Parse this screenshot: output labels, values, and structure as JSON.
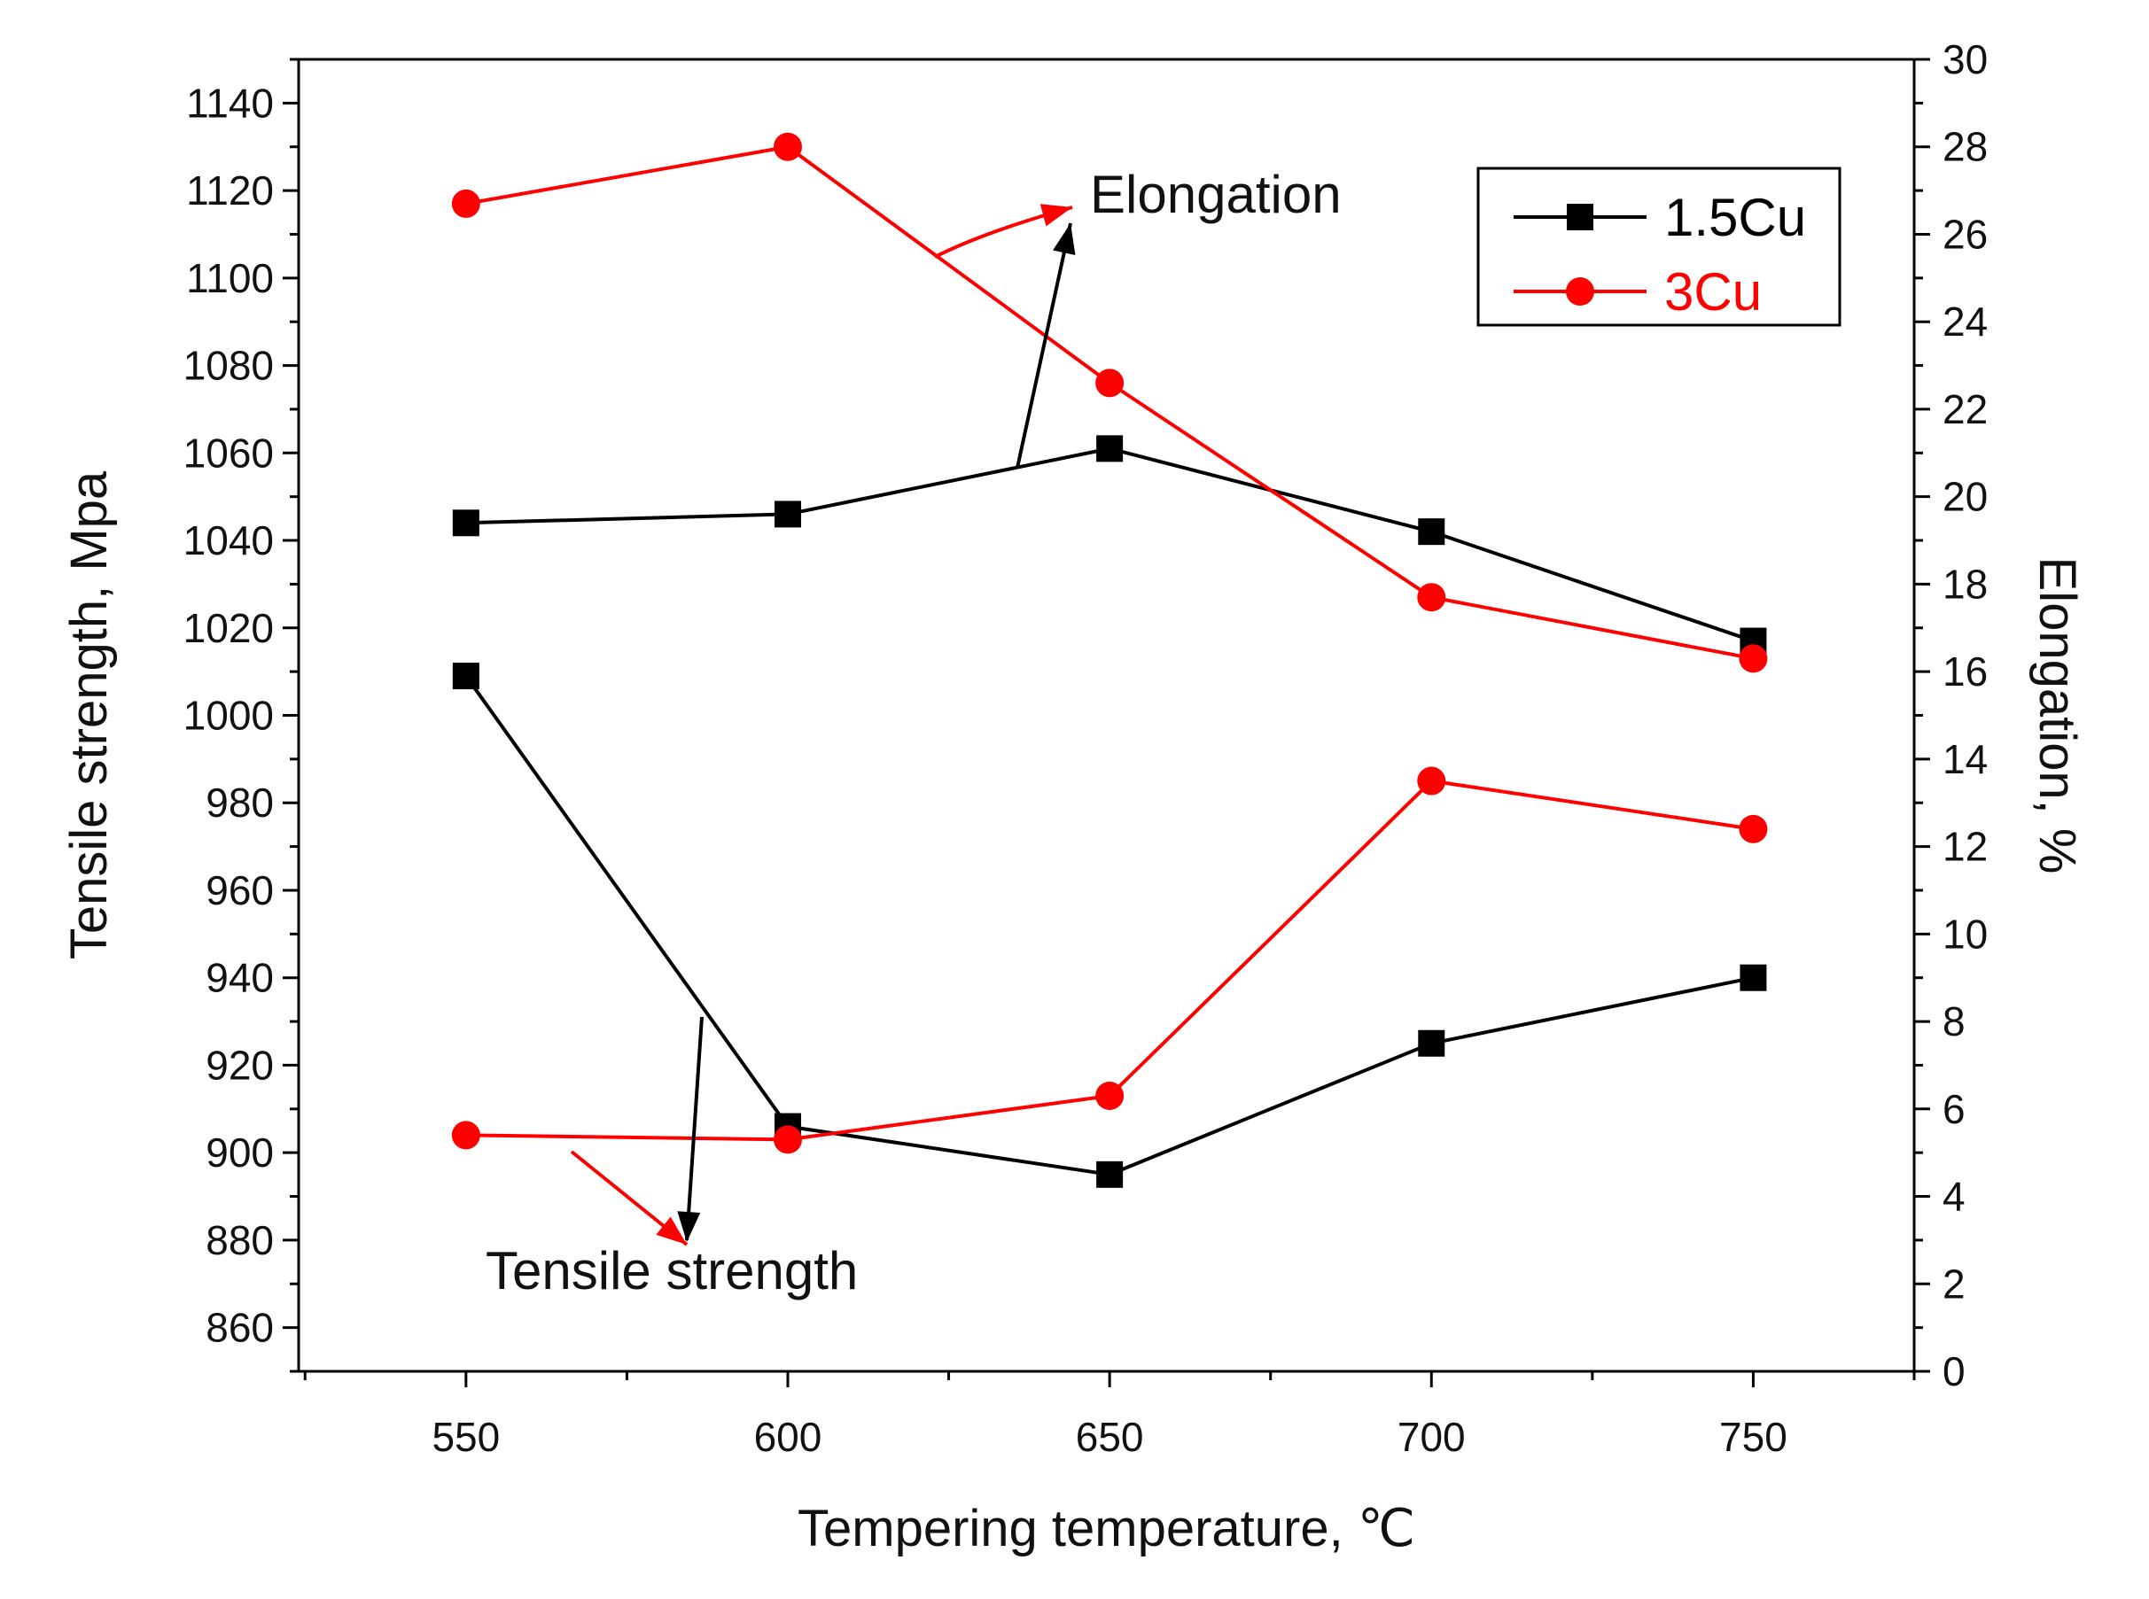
{
  "chart_data": {
    "type": "line",
    "title": "",
    "xlabel": "Tempering temperature, ℃",
    "ylabel": "Tensile strength, Mpa",
    "y2label": "Elongation, %",
    "x": [
      550,
      600,
      650,
      700,
      750
    ],
    "x_ticks": [
      "550",
      "600",
      "650",
      "700",
      "750"
    ],
    "xlim": [
      524,
      775
    ],
    "ylim": [
      850,
      1150
    ],
    "y_ticks": [
      "860",
      "880",
      "900",
      "920",
      "940",
      "960",
      "980",
      "1000",
      "1020",
      "1040",
      "1060",
      "1080",
      "1100",
      "1120",
      "1140"
    ],
    "y2lim": [
      0,
      30
    ],
    "y2_ticks": [
      "0",
      "2",
      "4",
      "6",
      "8",
      "10",
      "12",
      "14",
      "16",
      "18",
      "20",
      "22",
      "24",
      "26",
      "28",
      "30"
    ],
    "legend_position": "top-right",
    "legend": [
      {
        "name": "1.5Cu",
        "color": "#000000",
        "marker": "square"
      },
      {
        "name": "3Cu",
        "color": "#ff0000",
        "marker": "circle"
      }
    ],
    "series": [
      {
        "name": "1.5Cu",
        "quantity": "Tensile strength",
        "axis": "left",
        "color": "#000000",
        "marker": "square",
        "values": [
          1009,
          906,
          895,
          925,
          940
        ]
      },
      {
        "name": "3Cu",
        "quantity": "Tensile strength",
        "axis": "left",
        "color": "#ff0000",
        "marker": "circle",
        "values": [
          904,
          903,
          913,
          985,
          974
        ]
      },
      {
        "name": "1.5Cu",
        "quantity": "Elongation",
        "axis": "right",
        "color": "#000000",
        "marker": "square",
        "values": [
          19.4,
          19.6,
          21.1,
          19.2,
          16.7
        ]
      },
      {
        "name": "3Cu",
        "quantity": "Elongation",
        "axis": "right",
        "color": "#ff0000",
        "marker": "circle",
        "values": [
          26.7,
          28.0,
          22.6,
          17.7,
          16.3
        ]
      }
    ],
    "annotations": [
      {
        "text": "Elongation",
        "points_to": "elongation curves"
      },
      {
        "text": "Tensile strength",
        "points_to": "tensile strength curves"
      }
    ]
  }
}
